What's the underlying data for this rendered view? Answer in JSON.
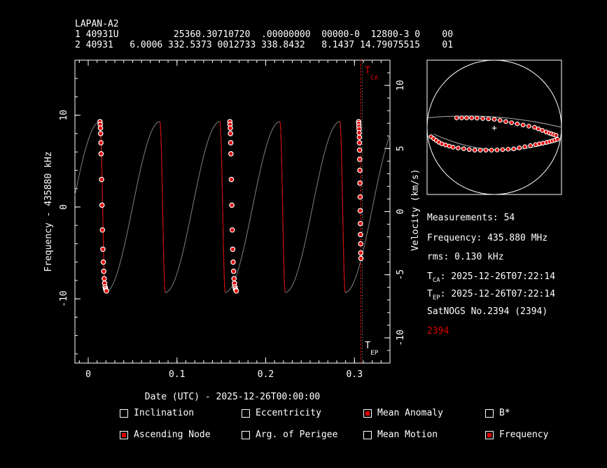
{
  "header": {
    "sat_name": "LAPAN-A2",
    "tle_line1": "1 40931U          25360.30710720  .00000000  00000-0  12800-3 0    00",
    "tle_line2": "2 40931   6.0006 332.5373 0012733 338.8432   8.1437 14.79075515    01"
  },
  "info": {
    "measurements": "Measurements: 54",
    "frequency": "Frequency: 435.880 MHz",
    "rms": "rms: 0.130 kHz",
    "tca_prefix": "T",
    "tca_sub": "CA",
    "tca_value": ": 2025-12-26T07:22:14",
    "tep_prefix": "T",
    "tep_sub": "EP",
    "tep_value": ": 2025-12-26T07:22:14",
    "station": "SatNOGS No.2394 (2394)",
    "station_id": "2394"
  },
  "options": [
    {
      "label": "Inclination",
      "checked": false
    },
    {
      "label": "Eccentricity",
      "checked": false
    },
    {
      "label": "Mean Anomaly",
      "checked": true
    },
    {
      "label": "B*",
      "checked": false
    },
    {
      "label": "Ascending Node",
      "checked": true
    },
    {
      "label": "Arg. of Perigee",
      "checked": false
    },
    {
      "label": "Mean Motion",
      "checked": false
    },
    {
      "label": "Frequency",
      "checked": true
    }
  ],
  "colors": {
    "fit": "#e00000",
    "model": "#7f7f7f",
    "axis": "#ffffff",
    "marker": "#e00000"
  },
  "chart_data": {
    "type": "scatter",
    "title": "",
    "xlabel": "Date (UTC) - 2025-12-26T00:00:00",
    "ylabel": "Frequency - 435880 kHz",
    "y2label": "Velocity (km/s)",
    "xlim": [
      -0.015,
      0.34
    ],
    "ylim": [
      -17,
      16
    ],
    "y2lim": [
      -12,
      12
    ],
    "x_ticks": [
      0,
      0.1,
      0.2,
      0.3
    ],
    "x_tick_labels": [
      "0",
      "0.1",
      "0.2",
      "0.3"
    ],
    "y_ticks": [
      -10,
      0,
      10
    ],
    "y_tick_labels": [
      "-10",
      "0",
      "10"
    ],
    "y2_ticks": [
      -10,
      -5,
      0,
      5,
      10
    ],
    "y2_tick_labels": [
      "-10",
      "-5",
      "0",
      "5",
      "10"
    ],
    "tca_x": 0.3071,
    "tca_label": "CA",
    "tep_label": "EP",
    "model": {
      "amplitude": 9.3,
      "period": 0.0676,
      "descend_fraction": 0.09,
      "pass_starts": [
        0.0131,
        0.1594,
        0.3045
      ]
    },
    "series": [
      {
        "x": [
          0.0133,
          0.0135,
          0.0138,
          0.014,
          0.0143,
          0.0145,
          0.015,
          0.0155,
          0.016,
          0.0165,
          0.017,
          0.0175,
          0.018,
          0.0185,
          0.019,
          0.0195,
          0.02,
          0.0205
        ],
        "y": [
          9.3,
          9.0,
          8.6,
          8.0,
          7.0,
          5.8,
          3.0,
          0.2,
          -2.5,
          -4.6,
          -6.0,
          -7.0,
          -7.8,
          -8.3,
          -8.7,
          -8.9,
          -9.05,
          -9.15
        ]
      },
      {
        "x": [
          0.1596,
          0.1598,
          0.1601,
          0.1603,
          0.1606,
          0.1608,
          0.1613,
          0.1618,
          0.1623,
          0.1628,
          0.1633,
          0.1638,
          0.1643,
          0.1648,
          0.1653,
          0.1658,
          0.1663,
          0.1668
        ],
        "y": [
          9.3,
          9.0,
          8.6,
          8.0,
          7.0,
          5.8,
          3.0,
          0.2,
          -2.5,
          -4.6,
          -6.0,
          -7.0,
          -7.8,
          -8.3,
          -8.7,
          -8.9,
          -9.05,
          -9.15
        ]
      },
      {
        "x": [
          0.3047,
          0.3049,
          0.305,
          0.3052,
          0.3053,
          0.3055,
          0.3056,
          0.3058,
          0.3059,
          0.3061,
          0.3062,
          0.3064,
          0.3065,
          0.3067,
          0.3068,
          0.307,
          0.3071,
          0.3073
        ],
        "y": [
          9.3,
          9.1,
          8.8,
          8.5,
          8.1,
          7.6,
          7.0,
          6.2,
          5.2,
          4.0,
          2.6,
          1.1,
          -0.4,
          -1.8,
          -3.0,
          -4.0,
          -5.0,
          -5.6
        ]
      }
    ]
  },
  "sky_data": {
    "track_upper": [
      [
        0.22,
        0.43
      ],
      [
        0.35,
        0.43
      ],
      [
        0.5,
        0.44
      ],
      [
        0.65,
        0.47
      ],
      [
        0.8,
        0.5
      ],
      [
        0.9,
        0.54
      ],
      [
        0.96,
        0.56
      ]
    ],
    "track_lower": [
      [
        0.03,
        0.57
      ],
      [
        0.1,
        0.62
      ],
      [
        0.2,
        0.65
      ],
      [
        0.35,
        0.67
      ],
      [
        0.5,
        0.67
      ],
      [
        0.65,
        0.66
      ],
      [
        0.8,
        0.63
      ],
      [
        0.9,
        0.61
      ],
      [
        0.97,
        0.59
      ]
    ]
  }
}
